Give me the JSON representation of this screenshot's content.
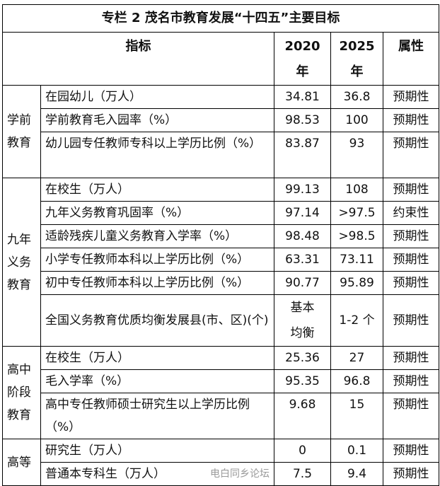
{
  "title": "专栏 2 茂名市教育发展“十四五”主要目标",
  "headers": {
    "indicator": "指标",
    "y2020": "2020\n年",
    "y2025": "2025\n年",
    "attr": "属性"
  },
  "groups": [
    {
      "name": "学前\n教育",
      "rows": [
        {
          "indicator": "在园幼儿（万人）",
          "v2020": "34.81",
          "v2025": "36.8",
          "attr": "预期性"
        },
        {
          "indicator": "学前教育毛入园率（%）",
          "v2020": "98.53",
          "v2025": "100",
          "attr": "预期性"
        },
        {
          "indicator": "幼儿园专任教师专科以上学历比例（%）",
          "v2020": "83.87",
          "v2025": "93",
          "attr": "预期性"
        }
      ]
    },
    {
      "name": "九年\n义务\n教育",
      "rows": [
        {
          "indicator": "在校生（万人）",
          "v2020": "99.13",
          "v2025": "108",
          "attr": "预期性"
        },
        {
          "indicator": "九年义务教育巩固率（%）",
          "v2020": "97.14",
          "v2025": ">97.5",
          "attr": "约束性"
        },
        {
          "indicator": "适龄残疾儿童义务教育入学率（%）",
          "v2020": "98.48",
          "v2025": ">98.5",
          "attr": "预期性"
        },
        {
          "indicator": "小学专任教师本科以上学历比例（%）",
          "v2020": "63.31",
          "v2025": "73.11",
          "attr": "预期性"
        },
        {
          "indicator": "初中专任教师本科以上学历比例（%）",
          "v2020": "90.77",
          "v2025": "95.89",
          "attr": "预期性"
        },
        {
          "indicator": "全国义务教育优质均衡发展县(市、区)(个)",
          "v2020": "基本\n均衡",
          "v2025": "1-2 个",
          "attr": "预期性"
        }
      ]
    },
    {
      "name": "高中\n阶段\n教育",
      "rows": [
        {
          "indicator": "在校生（万人）",
          "v2020": "25.36",
          "v2025": "27",
          "attr": "预期性"
        },
        {
          "indicator": "毛入学率（%）",
          "v2020": "95.35",
          "v2025": "96.8",
          "attr": "预期性"
        },
        {
          "indicator": "高中专任教师硕士研究生以上学历比例（%）",
          "v2020": "9.68",
          "v2025": "15",
          "attr": "预期性"
        }
      ]
    },
    {
      "name": "高等",
      "rows": [
        {
          "indicator": "研究生（万人）",
          "v2020": "0",
          "v2025": "0.1",
          "attr": "预期性"
        },
        {
          "indicator": "普通本专科生（万人）",
          "v2020": "7.5",
          "v2025": "9.4",
          "attr": "预期性"
        }
      ]
    }
  ],
  "watermark": "电白同乡论坛"
}
